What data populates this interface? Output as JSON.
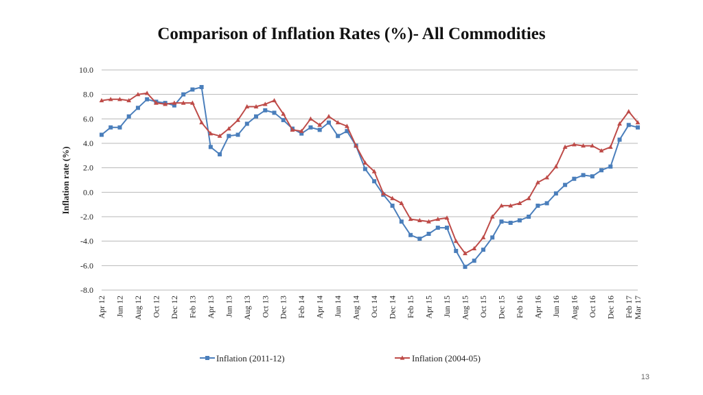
{
  "page": {
    "number": "13"
  },
  "colors": {
    "series1": "#4a7ebb",
    "series2": "#be4b48",
    "grid": "#b7b7b7"
  },
  "chart_data": {
    "type": "line",
    "title": "Comparison of Inflation Rates (%)- All Commodities",
    "xlabel": "",
    "ylabel": "Inflation rate (%)",
    "ylim": [
      -8,
      10
    ],
    "yticks": [
      10,
      8,
      6,
      4,
      2,
      0,
      -2,
      -4,
      -6,
      -8
    ],
    "ytick_labels": [
      "10.0",
      "8.0",
      "6.0",
      "4.0",
      "2.0",
      "0.0",
      "-2.0",
      "-4.0",
      "-6.0",
      "-8.0"
    ],
    "grid": true,
    "legend_position": "bottom",
    "x": [
      "Apr 12",
      "May 12",
      "Jun 12",
      "Jul 12",
      "Aug 12",
      "Sep 12",
      "Oct 12",
      "Nov 12",
      "Dec 12",
      "Jan 13",
      "Feb 13",
      "Mar 13",
      "Apr 13",
      "May 13",
      "Jun 13",
      "Jul 13",
      "Aug 13",
      "Sep 13",
      "Oct 13",
      "Nov 13",
      "Dec 13",
      "Jan 14",
      "Feb 14",
      "Mar 14",
      "Apr 14",
      "May 14",
      "Jun 14",
      "Jul 14",
      "Aug 14",
      "Sep 14",
      "Oct 14",
      "Nov 14",
      "Dec 14",
      "Jan 15",
      "Feb 15",
      "Mar 15",
      "Apr 15",
      "May 15",
      "Jun 15",
      "Jul 15",
      "Aug 15",
      "Sep 15",
      "Oct 15",
      "Nov 15",
      "Dec 15",
      "Jan 16",
      "Feb 16",
      "Mar 16",
      "Apr 16",
      "May 16",
      "Jun 16",
      "Jul 16",
      "Aug 16",
      "Sep 16",
      "Oct 16",
      "Nov 16",
      "Dec 16",
      "Jan 17",
      "Feb 17",
      "Mar 17"
    ],
    "x_tick_labels": [
      "Apr 12",
      "Jun 12",
      "Aug 12",
      "Oct 12",
      "Dec 12",
      "Feb 13",
      "Apr 13",
      "Jun 13",
      "Aug 13",
      "Oct 13",
      "Dec 13",
      "Feb 14",
      "Apr 14",
      "Jun 14",
      "Aug 14",
      "Oct 14",
      "Dec 14",
      "Feb 15",
      "Apr 15",
      "Jun 15",
      "Aug 15",
      "Oct 15",
      "Dec 15",
      "Feb 16",
      "Apr 16",
      "Jun 16",
      "Aug 16",
      "Oct 16",
      "Dec 16",
      "Feb 17",
      "Mar 17"
    ],
    "series": [
      {
        "name": "Inflation (2011-12)",
        "marker": "square",
        "values": [
          4.7,
          5.3,
          5.3,
          6.2,
          6.9,
          7.6,
          7.4,
          7.3,
          7.1,
          8.0,
          8.4,
          8.6,
          3.7,
          3.1,
          4.6,
          4.7,
          5.6,
          6.2,
          6.7,
          6.5,
          5.9,
          5.2,
          4.8,
          5.3,
          5.1,
          5.7,
          4.6,
          5.0,
          3.8,
          1.9,
          0.9,
          -0.2,
          -1.1,
          -2.4,
          -3.5,
          -3.8,
          -3.4,
          -2.9,
          -2.9,
          -4.8,
          -6.1,
          -5.6,
          -4.7,
          -3.7,
          -2.4,
          -2.5,
          -2.3,
          -2.0,
          -1.1,
          -0.9,
          -0.1,
          0.6,
          1.1,
          1.4,
          1.3,
          1.8,
          2.1,
          4.3,
          5.5,
          5.3
        ]
      },
      {
        "name": "Inflation (2004-05)",
        "marker": "triangle",
        "values": [
          7.5,
          7.6,
          7.6,
          7.5,
          8.0,
          8.1,
          7.3,
          7.2,
          7.3,
          7.3,
          7.3,
          5.7,
          4.8,
          4.6,
          5.2,
          5.9,
          7.0,
          7.0,
          7.2,
          7.5,
          6.4,
          5.1,
          5.0,
          6.0,
          5.5,
          6.2,
          5.7,
          5.4,
          3.8,
          2.4,
          1.7,
          -0.1,
          -0.5,
          -0.9,
          -2.2,
          -2.3,
          -2.4,
          -2.2,
          -2.1,
          -4.0,
          -5.0,
          -4.6,
          -3.7,
          -2.0,
          -1.1,
          -1.1,
          -0.9,
          -0.5,
          0.8,
          1.2,
          2.1,
          3.7,
          3.9,
          3.8,
          3.8,
          3.4,
          3.7,
          5.6,
          6.6,
          5.7
        ]
      }
    ]
  }
}
